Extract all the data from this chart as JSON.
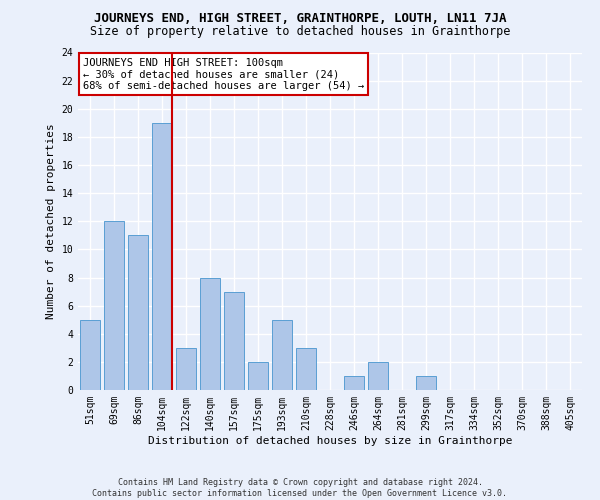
{
  "title": "JOURNEYS END, HIGH STREET, GRAINTHORPE, LOUTH, LN11 7JA",
  "subtitle": "Size of property relative to detached houses in Grainthorpe",
  "xlabel": "Distribution of detached houses by size in Grainthorpe",
  "ylabel": "Number of detached properties",
  "footer_line1": "Contains HM Land Registry data © Crown copyright and database right 2024.",
  "footer_line2": "Contains public sector information licensed under the Open Government Licence v3.0.",
  "categories": [
    "51sqm",
    "69sqm",
    "86sqm",
    "104sqm",
    "122sqm",
    "140sqm",
    "157sqm",
    "175sqm",
    "193sqm",
    "210sqm",
    "228sqm",
    "246sqm",
    "264sqm",
    "281sqm",
    "299sqm",
    "317sqm",
    "334sqm",
    "352sqm",
    "370sqm",
    "388sqm",
    "405sqm"
  ],
  "values": [
    5,
    12,
    11,
    19,
    3,
    8,
    7,
    2,
    5,
    3,
    0,
    1,
    2,
    0,
    1,
    0,
    0,
    0,
    0,
    0,
    0
  ],
  "bar_color": "#aec6e8",
  "bar_edge_color": "#5a9fd4",
  "highlight_index": 3,
  "highlight_line_color": "#cc0000",
  "ylim": [
    0,
    24
  ],
  "yticks": [
    0,
    2,
    4,
    6,
    8,
    10,
    12,
    14,
    16,
    18,
    20,
    22,
    24
  ],
  "annotation_text": "JOURNEYS END HIGH STREET: 100sqm\n← 30% of detached houses are smaller (24)\n68% of semi-detached houses are larger (54) →",
  "annotation_box_color": "#ffffff",
  "annotation_box_edge": "#cc0000",
  "bg_color": "#eaf0fb",
  "grid_color": "#ffffff",
  "title_fontsize": 9,
  "subtitle_fontsize": 8.5,
  "axis_label_fontsize": 8,
  "tick_fontsize": 7,
  "annotation_fontsize": 7.5,
  "footer_fontsize": 6
}
